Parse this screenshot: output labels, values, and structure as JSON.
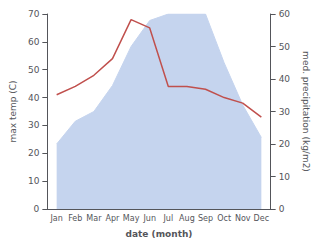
{
  "chart_data": {
    "type": "line",
    "categories": [
      "Jan",
      "Feb",
      "Mar",
      "Apr",
      "May",
      "Jun",
      "Jul",
      "Aug",
      "Sep",
      "Oct",
      "Nov",
      "Dec"
    ],
    "xlabel": "date (month)",
    "ylabel": "max temp (C)",
    "y2label": "med. precipitation (kg/m2)",
    "series": [
      {
        "type": "area",
        "color": "#c5d4ee",
        "axis": "y2",
        "values": [
          20,
          27,
          30,
          38,
          50,
          58,
          60,
          60,
          60,
          45,
          32,
          22
        ]
      },
      {
        "type": "line",
        "color": "#c0504d",
        "values": [
          41,
          44,
          48,
          54,
          68,
          65,
          44,
          44,
          43,
          40,
          38,
          33
        ]
      }
    ],
    "ylim": [
      0,
      70
    ],
    "yticks": [
      0,
      10,
      20,
      30,
      40,
      50,
      60,
      70
    ],
    "y2lim": [
      0,
      60
    ],
    "y2ticks": [
      0,
      10,
      20,
      30,
      40,
      50,
      60
    ],
    "grid": false
  }
}
